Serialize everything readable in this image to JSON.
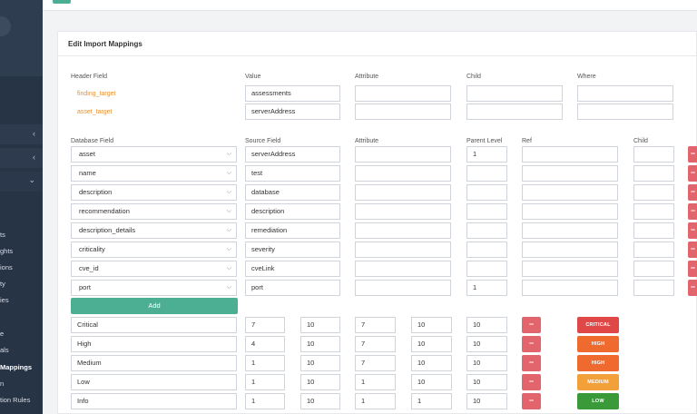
{
  "sidebar": {
    "items": [
      {
        "label": "ts"
      },
      {
        "label": "ghts"
      },
      {
        "label": "ions"
      },
      {
        "label": "ty"
      },
      {
        "label": "ies"
      },
      {
        "label": "e"
      },
      {
        "label": "als"
      },
      {
        "label": "Mappings"
      },
      {
        "label": "n"
      },
      {
        "label": "tion Rules"
      }
    ]
  },
  "card": {
    "title": "Edit Import Mappings",
    "header_fields": {
      "columns": [
        "Header Field",
        "Value",
        "Attribute",
        "Child",
        "Where"
      ],
      "rows": [
        {
          "field": "finding_target",
          "value": "assessments",
          "attribute": "",
          "child": "",
          "where": ""
        },
        {
          "field": "asset_target",
          "value": "serverAddress",
          "attribute": "",
          "child": "",
          "where": ""
        }
      ]
    },
    "database_fields": {
      "columns": [
        "Database Field",
        "Source Field",
        "Attribute",
        "Parent Level",
        "Ref",
        "Child"
      ],
      "rows": [
        {
          "db": "asset",
          "source": "serverAddress",
          "attribute": "",
          "parent": "1",
          "ref": "",
          "child": ""
        },
        {
          "db": "name",
          "source": "test",
          "attribute": "",
          "parent": "",
          "ref": "",
          "child": ""
        },
        {
          "db": "description",
          "source": "database",
          "attribute": "",
          "parent": "",
          "ref": "",
          "child": ""
        },
        {
          "db": "recommendation",
          "source": "description",
          "attribute": "",
          "parent": "",
          "ref": "",
          "child": ""
        },
        {
          "db": "description_details",
          "source": "remediation",
          "attribute": "",
          "parent": "",
          "ref": "",
          "child": ""
        },
        {
          "db": "criticality",
          "source": "severity",
          "attribute": "",
          "parent": "",
          "ref": "",
          "child": ""
        },
        {
          "db": "cve_id",
          "source": "cveLink",
          "attribute": "",
          "parent": "",
          "ref": "",
          "child": ""
        },
        {
          "db": "port",
          "source": "port",
          "attribute": "",
          "parent": "1",
          "ref": "",
          "child": ""
        }
      ],
      "remove_label": "−"
    },
    "add_label": "Add",
    "severity": {
      "remove_label": "−",
      "rows": [
        {
          "name": "Critical",
          "v1": "7",
          "v2": "10",
          "v3": "7",
          "v4": "10",
          "v5": "10",
          "badge": "CRITICAL",
          "color": "#e04848"
        },
        {
          "name": "High",
          "v1": "4",
          "v2": "10",
          "v3": "7",
          "v4": "10",
          "v5": "10",
          "badge": "HIGH",
          "color": "#ee6a2e"
        },
        {
          "name": "Medium",
          "v1": "1",
          "v2": "10",
          "v3": "7",
          "v4": "10",
          "v5": "10",
          "badge": "HIGH",
          "color": "#ee6a2e"
        },
        {
          "name": "Low",
          "v1": "1",
          "v2": "10",
          "v3": "1",
          "v4": "10",
          "v5": "10",
          "badge": "MEDIUM",
          "color": "#f2a03a"
        },
        {
          "name": "Info",
          "v1": "1",
          "v2": "10",
          "v3": "1",
          "v4": "1",
          "v5": "10",
          "badge": "LOW",
          "color": "#3a9a3a"
        }
      ]
    }
  }
}
